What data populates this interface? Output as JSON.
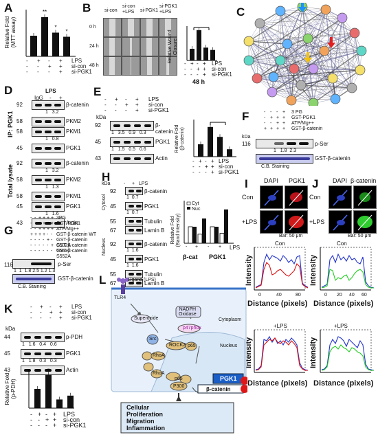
{
  "panels": {
    "A": {
      "letter": "A",
      "ylabel": "Relative Fold\n(MTT assay)",
      "conditions": [
        "LPS",
        "si-con",
        "si-PGK1"
      ],
      "signs": [
        [
          "-",
          "+",
          "-",
          "+"
        ],
        [
          "-",
          "-",
          "+",
          "+"
        ],
        [
          "-",
          "-",
          "-",
          "+"
        ]
      ],
      "values": [
        1.0,
        1.9,
        1.15,
        0.95
      ],
      "sig": [
        "",
        "**",
        "*",
        "*"
      ]
    },
    "B": {
      "letter": "B",
      "col_labels": [
        "si-con",
        "si-con\n+LPS",
        "si-PGK1",
        "si-PGK1\n+LPS"
      ],
      "row_labels": [
        "0 h",
        "24 h",
        "48 h"
      ],
      "ylabel": "Relative Wound\nClosure",
      "xlabel": "48 h",
      "conditions": [
        "LPS",
        "si-con",
        "si-PGK1"
      ],
      "values": [
        1.0,
        2.6,
        1.1,
        0.9
      ],
      "sig": "**"
    },
    "C": {
      "letter": "C"
    },
    "D": {
      "letter": "D",
      "top": "LPS",
      "lanes": [
        "IgG",
        "-",
        "+"
      ],
      "ip_label": "IP: PGK1",
      "total_label": "Total lysate",
      "blots": [
        {
          "kda": "92",
          "name": "β-catenin",
          "q": [
            "1",
            "3.2"
          ]
        },
        {
          "kda": "58",
          "name": "PKM2",
          "q": []
        },
        {
          "kda": "58",
          "name": "PKM1",
          "q": [
            "1",
            "0.8"
          ]
        },
        {
          "kda": "45",
          "name": "PGK1",
          "q": []
        },
        {
          "kda": "92",
          "name": "β-catenin",
          "q": [
            "1",
            "3.2"
          ]
        },
        {
          "kda": "58",
          "name": "PKM2",
          "q": [
            "1",
            "1.3"
          ]
        },
        {
          "kda": "58",
          "name": "PKM1",
          "q": []
        },
        {
          "kda": "45",
          "name": "PGK1",
          "q": [
            "1",
            "1.6"
          ]
        },
        {
          "kda": "43",
          "name": "Actin",
          "q": []
        }
      ]
    },
    "E": {
      "letter": "E",
      "conditions": [
        "LPS",
        "si-con",
        "si-PGK1"
      ],
      "kda_label": "kDa",
      "blots": [
        {
          "kda": "92",
          "name": "β-catenin",
          "q": [
            "1",
            "3.5",
            "0.9",
            "0.3"
          ]
        },
        {
          "kda": "45",
          "name": "PGK1",
          "q": [
            "1",
            "1.5",
            "0.5",
            "0.6"
          ]
        },
        {
          "kda": "43",
          "name": "Actin",
          "q": []
        }
      ],
      "ylabel": "Relative Fold\n(β-catenin)",
      "values": [
        1.0,
        2.4,
        1.6,
        0.6
      ],
      "sig": "**"
    },
    "F": {
      "letter": "F",
      "conditions": [
        "3 PG",
        "GST-PGK1",
        "ATP/Mg++",
        "GST-β-catenin"
      ],
      "kda": "116",
      "blot": "p-Ser",
      "quant": [
        "1",
        "1.8",
        "2.3"
      ],
      "stain": "C.B. Staining",
      "stain_name": "GST-β-catenin"
    },
    "G": {
      "letter": "G",
      "conditions": [
        "3PG",
        "GST-PGK1",
        "ATP/Mg++",
        "GST-β-catenin WT",
        "GST-β-catenin S502A",
        "GST-β-catenin T551C",
        "GST-β-catenin S552A"
      ],
      "kda": "116",
      "blot": "p-Ser",
      "quant": "1  1  1.8 2.5 1.2 1.3",
      "stain": "C.B. Staining",
      "stain_name": "GST-β-catenin"
    },
    "H": {
      "letter": "H",
      "lps": [
        "-",
        "+",
        "LPS"
      ],
      "cyto": "Cytosol",
      "nuc": "Nucleus",
      "blots": [
        {
          "kda": "92",
          "name": "β-catenin",
          "q": "1  0.7"
        },
        {
          "kda": "45",
          "name": "PGK1",
          "q": "1  0.7"
        },
        {
          "kda": "55",
          "name": "Tubulin",
          "q": ""
        },
        {
          "kda": "67",
          "name": "Lamin B",
          "q": ""
        },
        {
          "kda": "92",
          "name": "β-catenin",
          "q": "1  1.6"
        },
        {
          "kda": "45",
          "name": "PGK1",
          "q": "1  1.6"
        },
        {
          "kda": "55",
          "name": "Tubulin",
          "q": ""
        },
        {
          "kda": "67",
          "name": "Lamin B",
          "q": ""
        }
      ],
      "ylabel": "Relative Fold\n(Band Intensity)",
      "legend": [
        "Cyt",
        "Nuc"
      ],
      "xlabels": [
        "β-cat",
        "PGK1"
      ],
      "xsign": [
        "-",
        "+",
        "-",
        "+"
      ],
      "lps_label": "LPS",
      "values_cyt": [
        1.0,
        0.55,
        1.0,
        0.6
      ],
      "values_nuc": [
        1.0,
        1.5,
        1.0,
        2.05
      ]
    },
    "I": {
      "letter": "I",
      "stains": [
        "DAPI",
        "PGK1"
      ],
      "rows": [
        "Con",
        "+LPS"
      ],
      "bar": "Bar: 50 μm",
      "plot_titles": [
        "Con",
        "+LPS"
      ],
      "ylabel": "Intensity",
      "xlabel": "Distance (pixels)",
      "xticks": [
        "0",
        "40",
        "80"
      ]
    },
    "J": {
      "letter": "J",
      "stains": [
        "DAPI",
        "β-catenin"
      ],
      "rows": [
        "Con",
        "+LPS"
      ],
      "bar": "Bar: 50 μm",
      "plot_titles": [
        "Con",
        "+LPS"
      ],
      "ylabel": "Intensity",
      "xlabel": "Distance (pixels)",
      "xticks": [
        "0",
        "20",
        "40",
        "60"
      ]
    },
    "K": {
      "letter": "K",
      "conditions": [
        "LPS",
        "si-con",
        "si-PGK1"
      ],
      "kda_label": "kDa",
      "blots": [
        {
          "kda": "44",
          "name": "p-PDH",
          "q": [
            "1",
            "1.6",
            "0.4",
            "0.6"
          ]
        },
        {
          "kda": "45",
          "name": "PGK1",
          "q": [
            "1",
            "1.8",
            "0.3",
            "0.3"
          ]
        },
        {
          "kda": "43",
          "name": "Actin",
          "q": []
        }
      ],
      "ylabel": "Relative Fold\n(p-PDH)",
      "values": [
        1.0,
        1.75,
        0.45,
        0.65
      ],
      "sig": [
        "",
        "*",
        "",
        ""
      ]
    },
    "L": {
      "letter": "L",
      "ligand": "Ligand (LPS)",
      "tlr": "TLR4",
      "nadph": "NADPH\nOxidase",
      "superoxide": "Superoxide",
      "cytoplasm": "Cytoplasm",
      "nucleus": "Nucleus",
      "p47": "p47phox",
      "src": "Src",
      "rhoa": "RhoA",
      "y42": "Y42",
      "rock2": "ROCK2",
      "p65": "p65",
      "p300": "P300",
      "h": "H",
      "p": "P",
      "pgk1": "PGK1",
      "bcat": "β-catenin",
      "outcome": [
        "Cellular",
        "Proliferation",
        "Migration",
        "Inflammation"
      ]
    }
  },
  "colors": {
    "blue": "#2233cc",
    "red": "#dd1111",
    "green": "#22cc22",
    "arrow_blue": "#1e90ff",
    "arrow_red": "#e02020",
    "arrow_yellow": "#f4c20d"
  }
}
